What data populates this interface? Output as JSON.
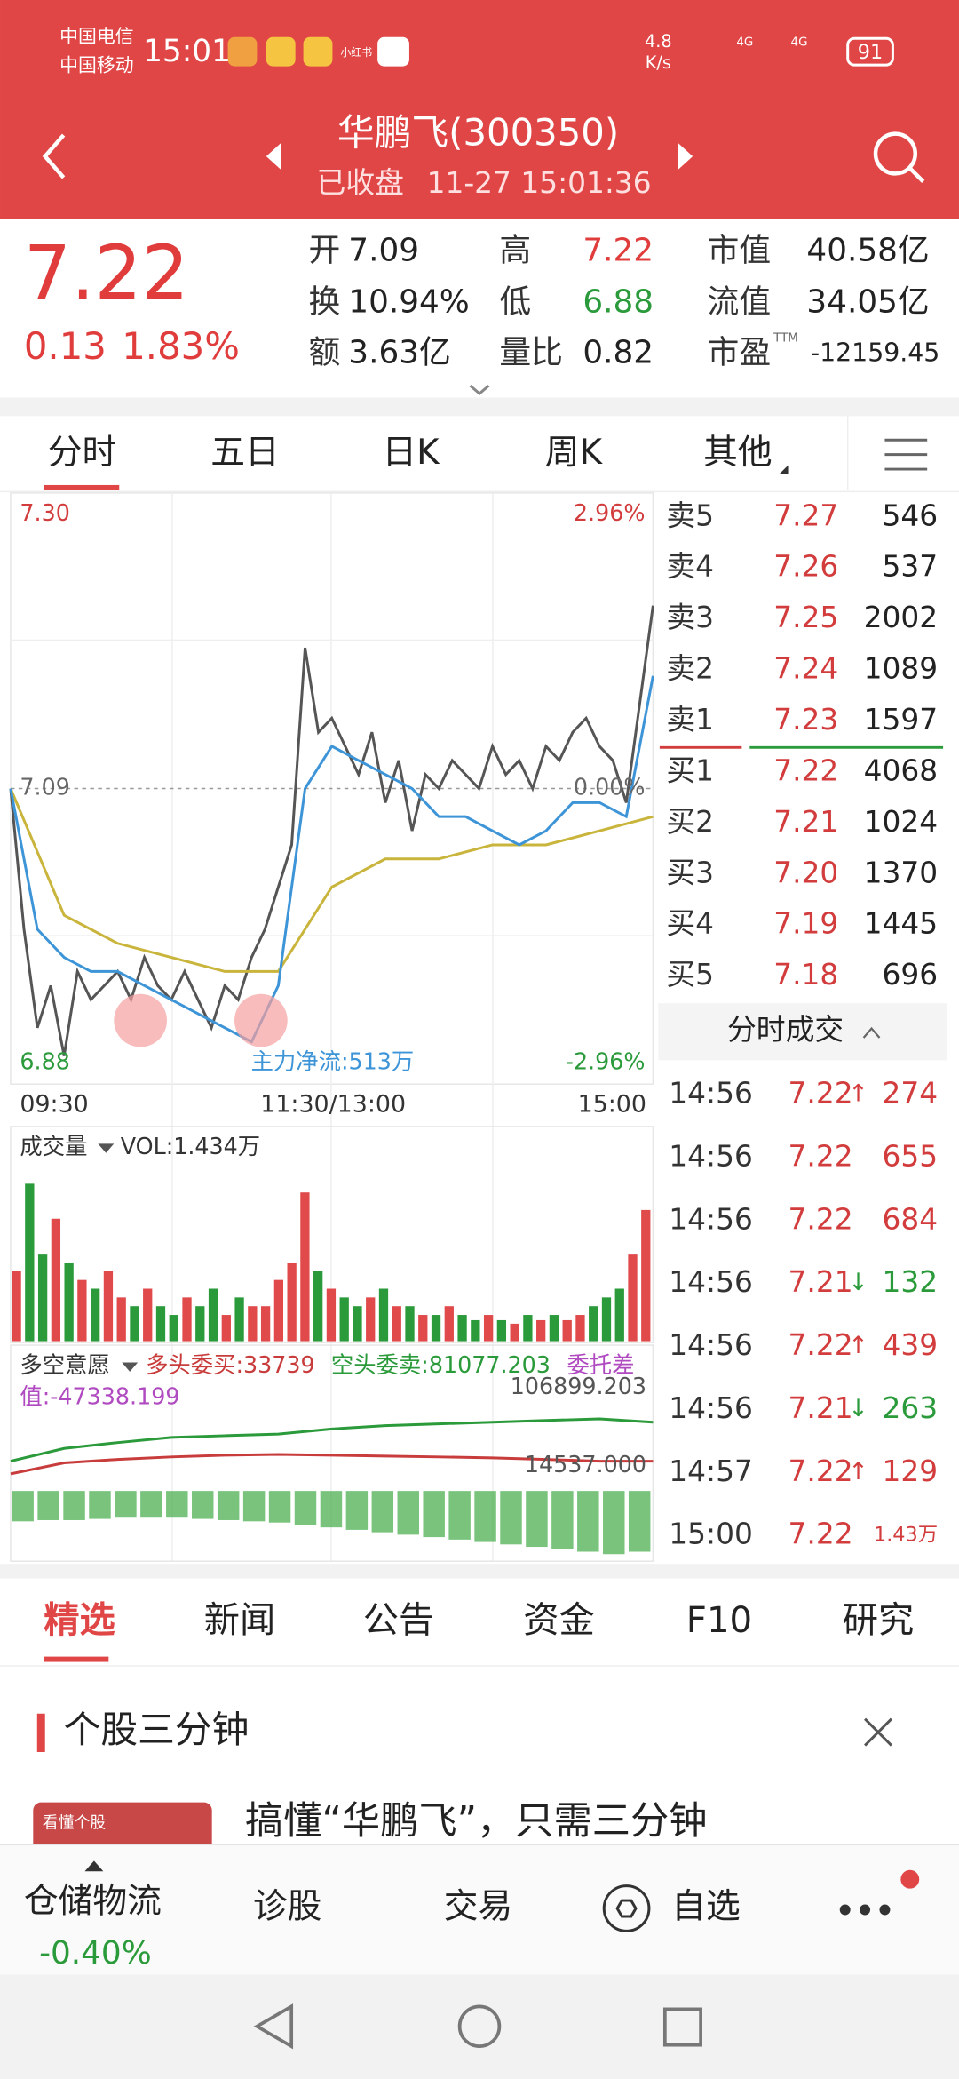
{
  "status_bar": {
    "carrier_1": "中国电信",
    "carrier_2": "中国移动",
    "time": "15:01",
    "app_badge": "小红书",
    "net_speed": "4.8",
    "net_unit": "K/s",
    "signal_1": "4G",
    "signal_2": "4G",
    "battery": "91"
  },
  "header": {
    "title": "华鹏飞(300350)",
    "market_status": "已收盘",
    "timestamp": "11-27 15:01:36"
  },
  "quote": {
    "price": "7.22",
    "change": "0.13",
    "change_pct": "1.83%",
    "color": "#e03c3c",
    "fields": [
      {
        "label": "开",
        "value": "7.09",
        "color": "#222"
      },
      {
        "label": "高",
        "value": "7.22",
        "color": "#e03c3c"
      },
      {
        "label": "市值",
        "value": "40.58亿",
        "color": "#222"
      },
      {
        "label": "换",
        "value": "10.94%",
        "color": "#222"
      },
      {
        "label": "低",
        "value": "6.88",
        "color": "#2a9a3a"
      },
      {
        "label": "流值",
        "value": "34.05亿",
        "color": "#222"
      },
      {
        "label": "额",
        "value": "3.63亿",
        "color": "#222"
      },
      {
        "label": "量比",
        "value": "0.82",
        "color": "#222"
      },
      {
        "label": "市盈",
        "label_sup": "TTM",
        "value": "-12159.45",
        "color": "#222"
      }
    ]
  },
  "chart_tabs": [
    "分时",
    "五日",
    "日K",
    "周K",
    "其他"
  ],
  "chart_data": [
    {
      "type": "line",
      "ylim": [
        6.88,
        7.3
      ],
      "yticks": [
        {
          "value": 7.3,
          "label": "7.30"
        },
        7.09,
        6.88
      ],
      "y2lim": [
        -2.96,
        2.96
      ],
      "y2ticks": [
        {
          "value": 2.96,
          "label": "2.96%"
        },
        {
          "value": 0,
          "label": "0.00%"
        },
        {
          "value": -2.96,
          "label": "-2.96%"
        }
      ],
      "x_labels": [
        "09:30",
        "11:30/13:00",
        "15:00"
      ],
      "annotation": "主力净流:513万",
      "series": [
        {
          "color": "#555555",
          "values": [
            7.09,
            6.99,
            6.92,
            6.95,
            6.9,
            6.96,
            6.94,
            6.95,
            6.96,
            6.94,
            6.97,
            6.95,
            6.94,
            6.96,
            6.94,
            6.92,
            6.95,
            6.94,
            6.97,
            6.99,
            7.02,
            7.05,
            7.19,
            7.13,
            7.14,
            7.12,
            7.1,
            7.13,
            7.08,
            7.11,
            7.06,
            7.1,
            7.09,
            7.11,
            7.1,
            7.09,
            7.12,
            7.1,
            7.11,
            7.09,
            7.12,
            7.11,
            7.13,
            7.14,
            7.12,
            7.11,
            7.08,
            7.15,
            7.22
          ]
        },
        {
          "color": "#c9b43c",
          "values": [
            7.09,
            7.0,
            6.98,
            6.97,
            6.96,
            6.96,
            7.02,
            7.04,
            7.04,
            7.05,
            7.05,
            7.06,
            7.07
          ]
        },
        {
          "color": "#3d95d8",
          "values": [
            7.09,
            6.99,
            6.97,
            6.96,
            6.96,
            6.95,
            6.94,
            6.93,
            6.92,
            6.91,
            6.95,
            7.09,
            7.12,
            7.11,
            7.1,
            7.09,
            7.07,
            7.07,
            7.06,
            7.05,
            7.06,
            7.08,
            7.08,
            7.07,
            7.17
          ]
        }
      ]
    },
    {
      "type": "bar",
      "title": "成交量",
      "label": "VOL:1.434万",
      "ylim": [
        0,
        100
      ],
      "up_color": "#e04a4a",
      "down_color": "#2a9a3a",
      "values": [
        40,
        90,
        50,
        70,
        45,
        35,
        30,
        40,
        25,
        20,
        30,
        20,
        15,
        25,
        20,
        30,
        15,
        25,
        20,
        20,
        35,
        45,
        85,
        40,
        30,
        25,
        20,
        25,
        30,
        20,
        20,
        15,
        15,
        20,
        15,
        12,
        15,
        12,
        10,
        15,
        12,
        15,
        12,
        15,
        20,
        25,
        30,
        50,
        75
      ]
    },
    {
      "type": "line",
      "title": "多空意愿",
      "diff_label_1": "委托差",
      "diff_label_2": "值:-47338.199",
      "diff_color": "#b04ac0",
      "ylim": [
        14537,
        106899.203
      ],
      "yticks": [
        {
          "value": 106899.203,
          "label": "106899.203"
        },
        {
          "value": 14537,
          "label": "14537.000"
        }
      ],
      "series": [
        {
          "name": "空头委卖:81077.203",
          "color": "#2a9a3a",
          "values": [
            20000,
            35000,
            42000,
            48000,
            50000,
            52000,
            58000,
            62000,
            64000,
            66000,
            68000,
            70000,
            66000
          ]
        },
        {
          "name": "多头委买:33739",
          "color": "#c83c3c",
          "values": [
            5000,
            18000,
            22000,
            25000,
            27000,
            28000,
            27000,
            26000,
            25000,
            24000,
            22000,
            20000,
            20000
          ]
        }
      ],
      "bars": {
        "color": "#4caf50",
        "ylim": [
          0,
          60
        ],
        "values": [
          25,
          24,
          24,
          23,
          22,
          22,
          22,
          23,
          24,
          25,
          26,
          28,
          30,
          32,
          34,
          36,
          38,
          40,
          42,
          44,
          46,
          48,
          50,
          52,
          50
        ]
      }
    }
  ],
  "order_book": {
    "sell": [
      {
        "label": "卖5",
        "price": "7.27",
        "volume": "546"
      },
      {
        "label": "卖4",
        "price": "7.26",
        "volume": "537"
      },
      {
        "label": "卖3",
        "price": "7.25",
        "volume": "2002"
      },
      {
        "label": "卖2",
        "price": "7.24",
        "volume": "1089"
      },
      {
        "label": "卖1",
        "price": "7.23",
        "volume": "1597"
      }
    ],
    "buy": [
      {
        "label": "买1",
        "price": "7.22",
        "volume": "4068"
      },
      {
        "label": "买2",
        "price": "7.21",
        "volume": "1024"
      },
      {
        "label": "买3",
        "price": "7.20",
        "volume": "1370"
      },
      {
        "label": "买4",
        "price": "7.19",
        "volume": "1445"
      },
      {
        "label": "买5",
        "price": "7.18",
        "volume": "696"
      }
    ]
  },
  "trades": {
    "title": "分时成交",
    "rows": [
      {
        "time": "14:56",
        "price": "7.22",
        "arrow": "↑",
        "volume": "274",
        "color": "#d23c3c"
      },
      {
        "time": "14:56",
        "price": "7.22",
        "arrow": "",
        "volume": "655",
        "color": "#d23c3c"
      },
      {
        "time": "14:56",
        "price": "7.22",
        "arrow": "",
        "volume": "684",
        "color": "#d23c3c"
      },
      {
        "time": "14:56",
        "price": "7.21",
        "arrow": "↓",
        "volume": "132",
        "color": "#2a9a3a"
      },
      {
        "time": "14:56",
        "price": "7.22",
        "arrow": "↑",
        "volume": "439",
        "color": "#d23c3c"
      },
      {
        "time": "14:56",
        "price": "7.21",
        "arrow": "↓",
        "volume": "263",
        "color": "#2a9a3a"
      },
      {
        "time": "14:57",
        "price": "7.22",
        "arrow": "↑",
        "volume": "129",
        "color": "#d23c3c"
      },
      {
        "time": "15:00",
        "price": "7.22",
        "arrow": "",
        "volume": "1.43万",
        "color": "#d23c3c"
      }
    ]
  },
  "news_tabs": [
    "精选",
    "新闻",
    "公告",
    "资金",
    "F10",
    "研究"
  ],
  "section": {
    "title": "个股三分钟",
    "article": "搞懂“华鹏飞”，只需三分钟",
    "thumb": "看懂个股"
  },
  "bottom_nav": {
    "sector": "仓储物流",
    "sector_change": "-0.40%",
    "items": [
      "诊股",
      "交易",
      "自选"
    ]
  }
}
